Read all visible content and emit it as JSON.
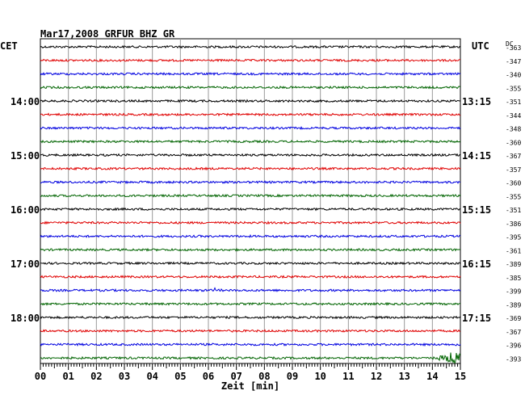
{
  "chart_data": {
    "type": "line",
    "title": "Mar17,2008   GRFUR BHZ GR",
    "left_timezone": "CET",
    "right_timezone": "UTC",
    "dc_header": "DC",
    "xlabel": "Zeit [min]",
    "xlim": [
      0,
      15
    ],
    "x_ticks": [
      "00",
      "01",
      "02",
      "03",
      "04",
      "05",
      "06",
      "07",
      "08",
      "09",
      "10",
      "11",
      "12",
      "13",
      "14",
      "15"
    ],
    "left_hour_labels": [
      {
        "row": 4,
        "text": "14:00"
      },
      {
        "row": 8,
        "text": "15:00"
      },
      {
        "row": 12,
        "text": "16:00"
      },
      {
        "row": 16,
        "text": "17:00"
      },
      {
        "row": 20,
        "text": "18:00"
      }
    ],
    "right_hour_labels": [
      {
        "row": 4,
        "text": "13:15"
      },
      {
        "row": 8,
        "text": "14:15"
      },
      {
        "row": 12,
        "text": "15:15"
      },
      {
        "row": 16,
        "text": "16:15"
      },
      {
        "row": 20,
        "text": "17:15"
      }
    ],
    "row_colors": [
      "#000000",
      "#e00000",
      "#0000e0",
      "#006400"
    ],
    "traces": [
      {
        "dc": "-363"
      },
      {
        "dc": "-347"
      },
      {
        "dc": "-340"
      },
      {
        "dc": "-355"
      },
      {
        "dc": "-351"
      },
      {
        "dc": "-344"
      },
      {
        "dc": "-348"
      },
      {
        "dc": "-360"
      },
      {
        "dc": "-367"
      },
      {
        "dc": "-357"
      },
      {
        "dc": "-360"
      },
      {
        "dc": "-355"
      },
      {
        "dc": "-351"
      },
      {
        "dc": "-386"
      },
      {
        "dc": "-395"
      },
      {
        "dc": "-361"
      },
      {
        "dc": "-389"
      },
      {
        "dc": "-385"
      },
      {
        "dc": "-399"
      },
      {
        "dc": "-389"
      },
      {
        "dc": "-369"
      },
      {
        "dc": "-367"
      },
      {
        "dc": "-396"
      },
      {
        "dc": "-393"
      }
    ],
    "events": [
      {
        "row": 18,
        "minute": 6.3,
        "amplitude": "small"
      },
      {
        "row": 23,
        "minute": 14.8,
        "amplitude": "large"
      }
    ],
    "grid": true,
    "vertical_gridlines_every_minute": true
  }
}
